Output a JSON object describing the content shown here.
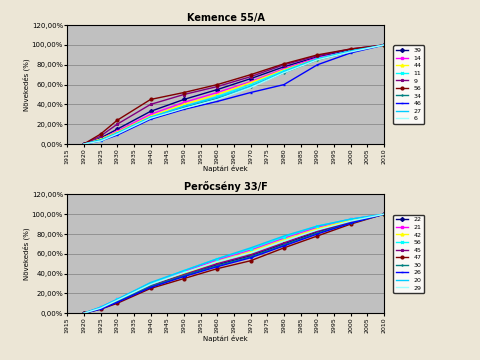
{
  "chart_data": [
    {
      "type": "line",
      "title": "Kemence 55/A",
      "x_label": "Naptári évek",
      "y_label": "Növekedés (%)",
      "x": [
        1920,
        1925,
        1930,
        1940,
        1950,
        1960,
        1970,
        1980,
        1990,
        2000,
        2010
      ],
      "xlim": [
        1915,
        2010
      ],
      "xticks": [
        1915,
        1920,
        1925,
        1930,
        1935,
        1940,
        1945,
        1950,
        1955,
        1960,
        1965,
        1970,
        1975,
        1980,
        1985,
        1990,
        1995,
        2000,
        2005,
        2010
      ],
      "ylim": [
        0,
        120
      ],
      "yticks": [
        {
          "value": 0,
          "label": "0,00%"
        },
        {
          "value": 20,
          "label": "20,00%"
        },
        {
          "value": 40,
          "label": "40,00%"
        },
        {
          "value": 60,
          "label": "60,00%"
        },
        {
          "value": 80,
          "label": "80,00%"
        },
        {
          "value": 100,
          "label": "100,00%"
        },
        {
          "value": 120,
          "label": "120,00%"
        }
      ],
      "grid": true,
      "legend": "right",
      "series": [
        {
          "name": "39",
          "color": "#000080",
          "marker": "diamond",
          "values": [
            0,
            6,
            15,
            33,
            45,
            55,
            66,
            78,
            88,
            95,
            100
          ]
        },
        {
          "name": "14",
          "color": "#ff00ff",
          "marker": "square",
          "values": [
            0,
            5,
            13,
            30,
            42,
            52,
            63,
            76,
            87,
            94,
            100
          ]
        },
        {
          "name": "44",
          "color": "#ffff00",
          "marker": "triangle",
          "values": [
            0,
            5,
            12,
            28,
            40,
            50,
            62,
            75,
            86,
            94,
            100
          ]
        },
        {
          "name": "11",
          "color": "#00ffff",
          "marker": "x",
          "values": [
            0,
            4,
            11,
            27,
            38,
            48,
            60,
            74,
            86,
            94,
            100
          ]
        },
        {
          "name": "9",
          "color": "#800080",
          "marker": "star",
          "values": [
            0,
            8,
            20,
            40,
            50,
            58,
            68,
            80,
            89,
            96,
            100
          ]
        },
        {
          "name": "56",
          "color": "#800000",
          "marker": "circle",
          "values": [
            0,
            10,
            24,
            45,
            52,
            60,
            70,
            81,
            90,
            96,
            100
          ]
        },
        {
          "name": "34",
          "color": "#008080",
          "marker": "plus",
          "values": [
            0,
            4,
            10,
            26,
            37,
            46,
            58,
            72,
            85,
            93,
            100
          ]
        },
        {
          "name": "46",
          "color": "#0000ff",
          "marker": "dash",
          "values": [
            0,
            3,
            9,
            25,
            35,
            43,
            52,
            60,
            80,
            92,
            100
          ]
        },
        {
          "name": "27",
          "color": "#00ccff",
          "marker": "none",
          "values": [
            0,
            4,
            11,
            27,
            38,
            47,
            58,
            73,
            86,
            94,
            100
          ]
        },
        {
          "name": "6",
          "color": "#99ffff",
          "marker": "none",
          "values": [
            0,
            3,
            10,
            26,
            36,
            45,
            57,
            72,
            85,
            93,
            100
          ]
        }
      ]
    },
    {
      "type": "line",
      "title": "Perőcsény 33/F",
      "x_label": "Naptári évek",
      "y_label": "Növekedés (%)",
      "x": [
        1920,
        1925,
        1930,
        1940,
        1950,
        1960,
        1970,
        1980,
        1990,
        2000,
        2010
      ],
      "xlim": [
        1915,
        2010
      ],
      "xticks": [
        1915,
        1920,
        1925,
        1930,
        1935,
        1940,
        1945,
        1950,
        1955,
        1960,
        1965,
        1970,
        1975,
        1980,
        1985,
        1990,
        1995,
        2000,
        2005,
        2010
      ],
      "ylim": [
        0,
        120
      ],
      "yticks": [
        {
          "value": 0,
          "label": "0,00%"
        },
        {
          "value": 20,
          "label": "20,00%"
        },
        {
          "value": 40,
          "label": "40,00%"
        },
        {
          "value": 60,
          "label": "60,00%"
        },
        {
          "value": 80,
          "label": "80,00%"
        },
        {
          "value": 100,
          "label": "100,00%"
        },
        {
          "value": 120,
          "label": "120,00%"
        }
      ],
      "grid": true,
      "legend": "right",
      "series": [
        {
          "name": "22",
          "color": "#000080",
          "marker": "diamond",
          "values": [
            0,
            5,
            12,
            27,
            38,
            49,
            58,
            70,
            82,
            92,
            100
          ]
        },
        {
          "name": "21",
          "color": "#ff00ff",
          "marker": "square",
          "values": [
            0,
            6,
            14,
            30,
            42,
            54,
            64,
            76,
            87,
            95,
            100
          ]
        },
        {
          "name": "42",
          "color": "#ffff00",
          "marker": "triangle",
          "values": [
            0,
            5,
            13,
            29,
            40,
            52,
            62,
            74,
            85,
            94,
            100
          ]
        },
        {
          "name": "56",
          "color": "#00ffff",
          "marker": "x",
          "values": [
            0,
            6,
            14,
            30,
            43,
            55,
            65,
            77,
            88,
            95,
            100
          ]
        },
        {
          "name": "45",
          "color": "#800080",
          "marker": "star",
          "values": [
            0,
            5,
            12,
            28,
            39,
            50,
            59,
            71,
            83,
            92,
            100
          ]
        },
        {
          "name": "47",
          "color": "#800000",
          "marker": "circle",
          "values": [
            0,
            4,
            10,
            25,
            35,
            45,
            53,
            66,
            78,
            90,
            100
          ]
        },
        {
          "name": "30",
          "color": "#008080",
          "marker": "plus",
          "values": [
            0,
            5,
            12,
            27,
            38,
            48,
            57,
            69,
            81,
            91,
            100
          ]
        },
        {
          "name": "26",
          "color": "#0000ff",
          "marker": "dash",
          "values": [
            0,
            4,
            11,
            26,
            37,
            47,
            56,
            68,
            80,
            91,
            100
          ]
        },
        {
          "name": "20",
          "color": "#00ccff",
          "marker": "none",
          "values": [
            0,
            6,
            14,
            31,
            43,
            55,
            66,
            78,
            88,
            95,
            100
          ]
        },
        {
          "name": "29",
          "color": "#99ffff",
          "marker": "none",
          "values": [
            0,
            5,
            13,
            29,
            41,
            52,
            61,
            73,
            84,
            93,
            100
          ]
        }
      ]
    }
  ]
}
